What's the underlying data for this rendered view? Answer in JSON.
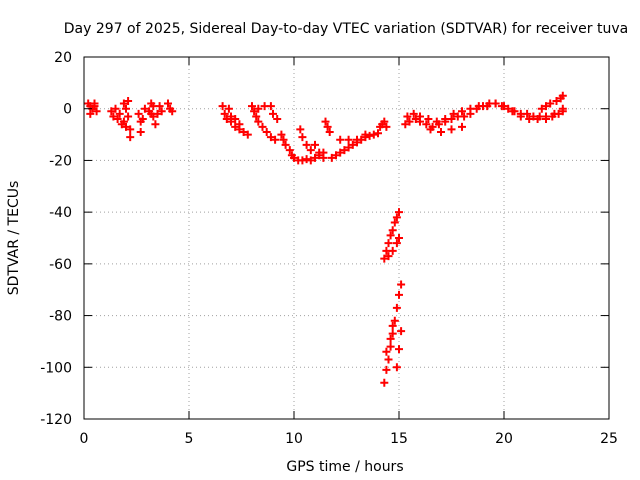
{
  "chart_data": {
    "type": "scatter",
    "title": "Day 297 of 2025, Sidereal Day-to-day VTEC variation (SDTVAR) for receiver tuva",
    "xlabel": "GPS time / hours",
    "ylabel": "SDTVAR / TECUs",
    "xlim": [
      0,
      25
    ],
    "ylim": [
      -120,
      20
    ],
    "xticks": [
      "0",
      "5",
      "10",
      "15",
      "20",
      "25"
    ],
    "yticks": [
      "20",
      "0",
      "-20",
      "-40",
      "-60",
      "-80",
      "-100",
      "-120"
    ],
    "grid": true,
    "marker": "plus",
    "color": "#ff0000",
    "series": [
      {
        "points": [
          [
            0.2,
            2
          ],
          [
            0.3,
            1
          ],
          [
            0.4,
            0
          ],
          [
            0.5,
            1
          ],
          [
            0.6,
            -1
          ],
          [
            0.3,
            -2
          ],
          [
            0.5,
            2
          ],
          [
            1.3,
            -1
          ],
          [
            1.4,
            -3
          ],
          [
            1.5,
            0
          ],
          [
            1.6,
            -4
          ],
          [
            1.7,
            -2
          ],
          [
            1.8,
            -6
          ],
          [
            1.9,
            -5
          ],
          [
            2.0,
            -7
          ],
          [
            2.1,
            -3
          ],
          [
            2.2,
            -8
          ],
          [
            2.2,
            -11
          ],
          [
            1.9,
            2
          ],
          [
            2.0,
            0
          ],
          [
            2.1,
            3
          ],
          [
            2.6,
            -2
          ],
          [
            2.7,
            -5
          ],
          [
            2.7,
            -9
          ],
          [
            2.8,
            -4
          ],
          [
            2.9,
            0
          ],
          [
            3.1,
            -1
          ],
          [
            3.2,
            2
          ],
          [
            3.3,
            -3
          ],
          [
            3.4,
            -6
          ],
          [
            3.5,
            -2
          ],
          [
            3.6,
            1
          ],
          [
            3.7,
            -1
          ],
          [
            4.0,
            2
          ],
          [
            4.1,
            0
          ],
          [
            4.2,
            -1
          ],
          [
            3.3,
            1
          ],
          [
            3.2,
            -2
          ],
          [
            6.6,
            1
          ],
          [
            6.7,
            -2
          ],
          [
            6.8,
            -4
          ],
          [
            6.9,
            0
          ],
          [
            7.0,
            -5
          ],
          [
            7.2,
            -7
          ],
          [
            7.4,
            -8
          ],
          [
            7.6,
            -9
          ],
          [
            7.8,
            -10
          ],
          [
            7.0,
            -3
          ],
          [
            7.2,
            -4
          ],
          [
            7.4,
            -6
          ],
          [
            8.0,
            1
          ],
          [
            8.1,
            -1
          ],
          [
            8.2,
            -3
          ],
          [
            8.3,
            -5
          ],
          [
            8.5,
            -7
          ],
          [
            8.7,
            -9
          ],
          [
            8.9,
            -11
          ],
          [
            9.1,
            -12
          ],
          [
            8.3,
            0
          ],
          [
            8.6,
            1
          ],
          [
            8.9,
            1
          ],
          [
            9.0,
            -2
          ],
          [
            9.2,
            -4
          ],
          [
            9.4,
            -10
          ],
          [
            9.5,
            -12
          ],
          [
            9.6,
            -14
          ],
          [
            9.8,
            -16
          ],
          [
            9.9,
            -18
          ],
          [
            10.0,
            -19
          ],
          [
            10.2,
            -20
          ],
          [
            10.4,
            -20
          ],
          [
            10.6,
            -19.5
          ],
          [
            10.8,
            -20
          ],
          [
            11.0,
            -19
          ],
          [
            11.2,
            -18
          ],
          [
            11.4,
            -17
          ],
          [
            10.3,
            -8
          ],
          [
            10.4,
            -11
          ],
          [
            10.6,
            -14
          ],
          [
            10.8,
            -16
          ],
          [
            11.0,
            -14
          ],
          [
            11.2,
            -17
          ],
          [
            11.4,
            -19
          ],
          [
            11.5,
            -5
          ],
          [
            11.6,
            -7
          ],
          [
            11.7,
            -9
          ],
          [
            11.8,
            -19
          ],
          [
            12.0,
            -18
          ],
          [
            12.2,
            -17
          ],
          [
            12.4,
            -16
          ],
          [
            12.6,
            -15
          ],
          [
            12.8,
            -14
          ],
          [
            13.0,
            -13
          ],
          [
            13.2,
            -12
          ],
          [
            13.4,
            -11
          ],
          [
            13.6,
            -10.5
          ],
          [
            13.8,
            -10
          ],
          [
            14.0,
            -9.5
          ],
          [
            12.2,
            -12
          ],
          [
            12.6,
            -12
          ],
          [
            13.0,
            -12
          ],
          [
            13.4,
            -10
          ],
          [
            14.1,
            -7
          ],
          [
            14.2,
            -6
          ],
          [
            14.3,
            -5
          ],
          [
            14.4,
            -7
          ],
          [
            14.3,
            -58
          ],
          [
            14.4,
            -55
          ],
          [
            14.5,
            -52
          ],
          [
            14.6,
            -49
          ],
          [
            14.7,
            -47
          ],
          [
            14.8,
            -44
          ],
          [
            14.9,
            -42
          ],
          [
            15.0,
            -40
          ],
          [
            14.5,
            -57
          ],
          [
            14.7,
            -55
          ],
          [
            14.9,
            -52
          ],
          [
            15.0,
            -50
          ],
          [
            14.3,
            -106
          ],
          [
            14.4,
            -101
          ],
          [
            14.5,
            -97
          ],
          [
            14.6,
            -92
          ],
          [
            14.7,
            -87
          ],
          [
            14.8,
            -82
          ],
          [
            14.9,
            -77
          ],
          [
            15.0,
            -72
          ],
          [
            15.1,
            -68
          ],
          [
            14.4,
            -94
          ],
          [
            14.6,
            -89
          ],
          [
            14.7,
            -84
          ],
          [
            14.9,
            -100
          ],
          [
            15.0,
            -93
          ],
          [
            15.1,
            -86
          ],
          [
            15.3,
            -6
          ],
          [
            15.5,
            -5
          ],
          [
            15.8,
            -4
          ],
          [
            16.0,
            -5
          ],
          [
            16.3,
            -6
          ],
          [
            16.6,
            -7
          ],
          [
            16.9,
            -6
          ],
          [
            17.2,
            -5
          ],
          [
            17.5,
            -4
          ],
          [
            17.8,
            -3
          ],
          [
            18.1,
            -3
          ],
          [
            18.4,
            -2
          ],
          [
            18.7,
            0
          ],
          [
            19.0,
            1
          ],
          [
            19.3,
            2
          ],
          [
            19.6,
            2
          ],
          [
            19.9,
            1
          ],
          [
            20.2,
            0
          ],
          [
            20.5,
            -1
          ],
          [
            20.8,
            -2
          ],
          [
            21.1,
            -2
          ],
          [
            21.4,
            -3
          ],
          [
            21.7,
            -3
          ],
          [
            22.0,
            -4
          ],
          [
            22.3,
            -3
          ],
          [
            22.6,
            -2
          ],
          [
            22.8,
            0
          ],
          [
            15.4,
            -3
          ],
          [
            15.7,
            -2
          ],
          [
            16.0,
            -3
          ],
          [
            16.4,
            -4
          ],
          [
            16.8,
            -5
          ],
          [
            17.2,
            -4
          ],
          [
            17.6,
            -2
          ],
          [
            18.0,
            -1
          ],
          [
            18.4,
            0
          ],
          [
            18.8,
            1
          ],
          [
            19.2,
            1
          ],
          [
            19.6,
            2
          ],
          [
            20.0,
            1
          ],
          [
            20.4,
            -1
          ],
          [
            20.8,
            -3
          ],
          [
            21.2,
            -4
          ],
          [
            21.6,
            -4
          ],
          [
            22.0,
            -3
          ],
          [
            22.4,
            -2
          ],
          [
            22.8,
            -1
          ],
          [
            16.5,
            -8
          ],
          [
            17.0,
            -9
          ],
          [
            17.5,
            -8
          ],
          [
            18.0,
            -7
          ],
          [
            22.0,
            1
          ],
          [
            22.2,
            2
          ],
          [
            22.5,
            3
          ],
          [
            22.7,
            4
          ],
          [
            22.8,
            5
          ],
          [
            21.8,
            0
          ]
        ]
      }
    ]
  }
}
